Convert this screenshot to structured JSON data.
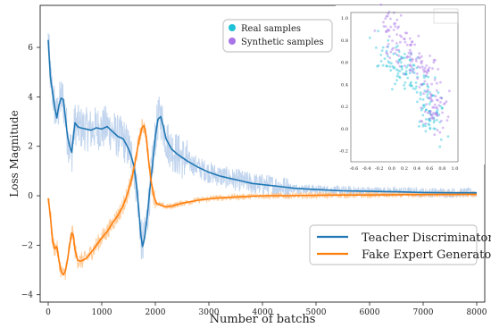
{
  "chart_data": [
    {
      "type": "line",
      "xlabel": "Number of batchs",
      "ylabel": "Loss Magnitude",
      "xlim": [
        -150,
        8150
      ],
      "ylim": [
        -4.3,
        7.7
      ],
      "x_ticks": [
        0,
        1000,
        2000,
        3000,
        4000,
        5000,
        6000,
        7000,
        8000
      ],
      "y_ticks": [
        -4,
        -2,
        0,
        2,
        4,
        6
      ],
      "legend_position": "lower-right",
      "grid": false,
      "series": [
        {
          "name": "Teacher Discriminator",
          "color": "#1f77b4",
          "band_color": "#aec7e8",
          "x": [
            0,
            40,
            80,
            120,
            160,
            200,
            240,
            280,
            320,
            360,
            400,
            440,
            470,
            500,
            550,
            600,
            700,
            800,
            900,
            1000,
            1100,
            1200,
            1300,
            1400,
            1450,
            1500,
            1550,
            1600,
            1650,
            1700,
            1730,
            1760,
            1800,
            1850,
            1900,
            1950,
            2000,
            2050,
            2100,
            2150,
            2200,
            2300,
            2400,
            2500,
            2600,
            2800,
            3000,
            3200,
            3400,
            3600,
            3800,
            4000,
            4300,
            4600,
            5000,
            5500,
            6000,
            6500,
            7000,
            7500,
            8000
          ],
          "values": [
            6.3,
            4.8,
            4.2,
            3.6,
            3.15,
            3.65,
            3.95,
            3.9,
            3.2,
            2.4,
            2.0,
            1.75,
            2.4,
            2.95,
            2.8,
            2.75,
            2.7,
            2.65,
            2.75,
            2.7,
            2.8,
            2.6,
            2.4,
            2.3,
            2.1,
            1.9,
            1.6,
            1.2,
            0.4,
            -0.8,
            -1.6,
            -2.05,
            -1.7,
            -0.8,
            0.3,
            1.3,
            2.4,
            3.1,
            3.2,
            2.8,
            2.3,
            1.9,
            1.7,
            1.55,
            1.4,
            1.15,
            0.95,
            0.8,
            0.7,
            0.6,
            0.5,
            0.45,
            0.38,
            0.3,
            0.25,
            0.2,
            0.18,
            0.16,
            0.13,
            0.12,
            0.12
          ]
        },
        {
          "name": "Fake Expert Generator",
          "color": "#ff7f0e",
          "band_color": "#ffbb78",
          "x": [
            0,
            40,
            80,
            120,
            160,
            200,
            240,
            280,
            320,
            360,
            400,
            440,
            470,
            500,
            550,
            600,
            700,
            800,
            900,
            1000,
            1100,
            1200,
            1300,
            1400,
            1500,
            1550,
            1600,
            1650,
            1700,
            1750,
            1790,
            1830,
            1870,
            1920,
            1970,
            2020,
            2100,
            2200,
            2300,
            2500,
            2800,
            3100,
            3500,
            4000,
            4500,
            5000,
            5500,
            6000,
            7000,
            8000
          ],
          "values": [
            -0.1,
            -0.8,
            -1.8,
            -2.15,
            -2.05,
            -2.6,
            -3.05,
            -3.2,
            -3.05,
            -2.6,
            -2.0,
            -1.5,
            -1.6,
            -2.2,
            -2.6,
            -2.65,
            -2.55,
            -2.3,
            -2.0,
            -1.7,
            -1.45,
            -1.1,
            -0.8,
            -0.4,
            0.2,
            0.6,
            1.1,
            1.7,
            2.3,
            2.75,
            2.85,
            2.4,
            1.5,
            0.6,
            0.0,
            -0.3,
            -0.38,
            -0.45,
            -0.42,
            -0.3,
            -0.18,
            -0.1,
            -0.05,
            0.0,
            0.0,
            0.02,
            0.03,
            0.03,
            0.05,
            0.06
          ]
        }
      ]
    },
    {
      "type": "scatter",
      "xlim": [
        -0.65,
        1.05
      ],
      "ylim": [
        -0.3,
        1.05
      ],
      "x_ticks": [
        -0.6,
        -0.4,
        -0.2,
        0.0,
        0.2,
        0.4,
        0.6,
        0.8,
        1.0
      ],
      "x_tick_labels": [
        "-0.6",
        "-0.4",
        "-0.2",
        "0.0",
        "0.2",
        "0.4",
        "0.6",
        "0.8",
        "1.0"
      ],
      "y_ticks": [
        -0.2,
        0.0,
        0.2,
        0.4,
        0.6,
        0.8,
        1.0
      ],
      "y_tick_labels": [
        "-0.2",
        "0.0",
        "0.2",
        "0.4",
        "0.6",
        "0.8",
        "1.0"
      ],
      "legend_position": "top-left",
      "series": [
        {
          "name": "Real samples",
          "color": "#1fc1d6",
          "centers": [
            [
              -0.15,
              0.7
            ],
            [
              0.0,
              0.62
            ],
            [
              0.15,
              0.55
            ],
            [
              0.3,
              0.48
            ],
            [
              0.45,
              0.38
            ],
            [
              0.55,
              0.28
            ],
            [
              0.62,
              0.15
            ],
            [
              0.65,
              0.05
            ]
          ],
          "count": 160
        },
        {
          "name": "Synthetic samples",
          "color": "#a874e8",
          "centers": [
            [
              -0.05,
              0.95
            ],
            [
              0.05,
              0.85
            ],
            [
              0.2,
              0.75
            ],
            [
              0.3,
              0.65
            ],
            [
              0.45,
              0.55
            ],
            [
              0.55,
              0.45
            ],
            [
              0.65,
              0.32
            ],
            [
              0.7,
              0.2
            ],
            [
              0.75,
              0.08
            ]
          ],
          "count": 180
        }
      ]
    }
  ]
}
